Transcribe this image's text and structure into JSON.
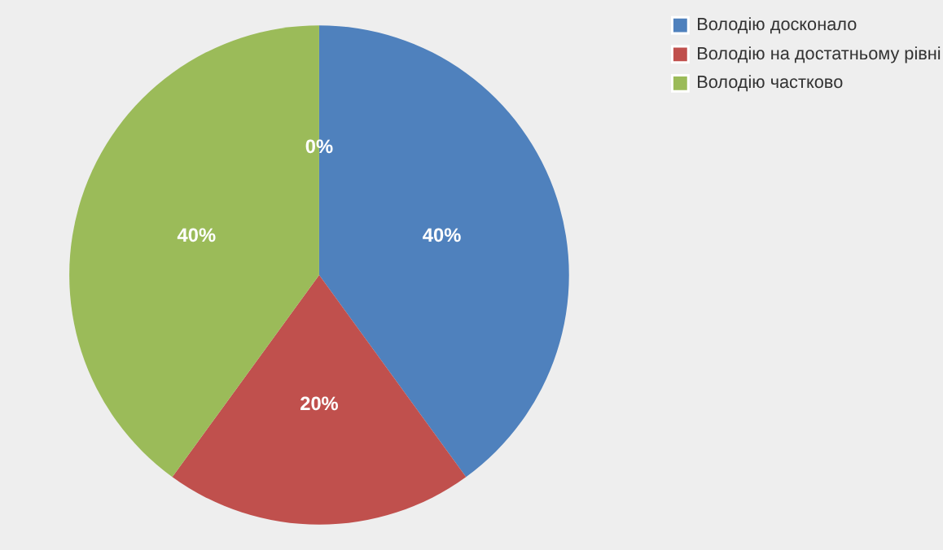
{
  "chart_data": {
    "type": "pie",
    "categories": [
      "Володію досконало",
      "Володію на достатньому рівні",
      "Володію частково",
      null
    ],
    "values": [
      40,
      20,
      40,
      0
    ],
    "colors": [
      "#4f81bd",
      "#c0504d",
      "#9bbb59",
      "#8064a2"
    ],
    "value_labels": [
      "40%",
      "20%",
      "40%",
      "0%"
    ],
    "legend": "right"
  }
}
